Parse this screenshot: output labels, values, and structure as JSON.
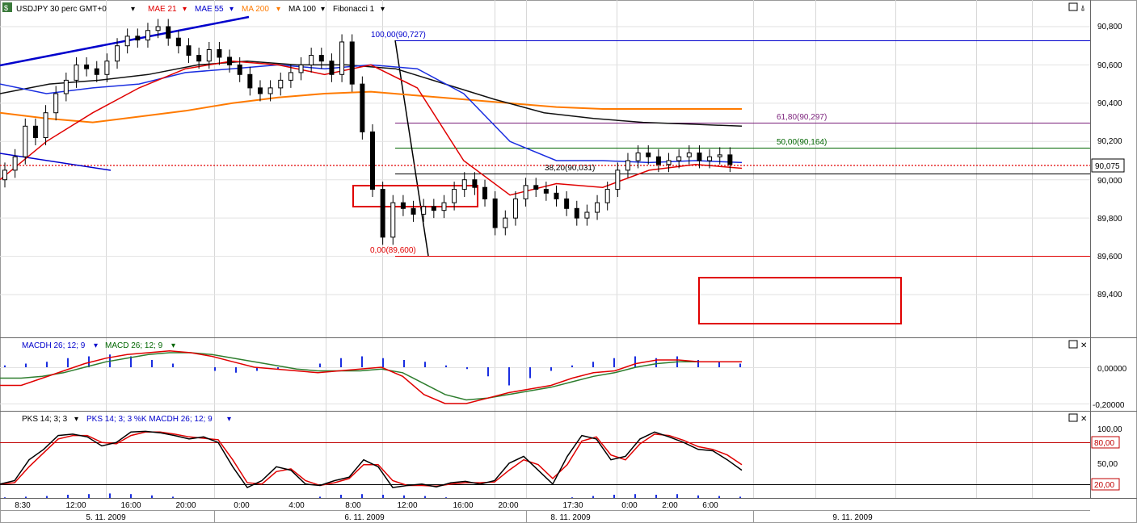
{
  "toolbar": {
    "symbol": "USDJPY 30 perc GMT+0",
    "indicators": [
      {
        "label": "MAE 21",
        "color": "#e00000"
      },
      {
        "label": "MAE 55",
        "color": "#0000cc"
      },
      {
        "label": "MA 200",
        "color": "#ff7a00"
      },
      {
        "label": "MA 100",
        "color": "#000000"
      },
      {
        "label": "Fibonacci 1",
        "color": "#000000"
      }
    ]
  },
  "price_axis": {
    "ticks": [
      "90,800",
      "90,600",
      "90,400",
      "90,200",
      "90,000",
      "89,800",
      "89,600",
      "89,400"
    ],
    "current": "90,075"
  },
  "fibonacci": [
    {
      "label": "100,00(90,727)",
      "color": "#0000cc"
    },
    {
      "label": "61,80(90,297)",
      "color": "#7a1f7a"
    },
    {
      "label": "50,00(90,164)",
      "color": "#006600"
    },
    {
      "label": "38,20(90,031)",
      "color": "#000000"
    },
    {
      "label": "0,00(89,600)",
      "color": "#e00000"
    }
  ],
  "macd_panel": {
    "labels": [
      {
        "label": "MACDH 26; 12; 9",
        "color": "#0000cc"
      },
      {
        "label": "MACD 26; 12; 9",
        "color": "#006600"
      }
    ],
    "ticks": [
      "0,00000",
      "-0,20000"
    ]
  },
  "pks_panel": {
    "labels": [
      {
        "label": "PKS 14; 3; 3",
        "color": "#000000"
      },
      {
        "label": "PKS 14; 3; 3 %K MACDH 26; 12; 9",
        "color": "#0000cc"
      }
    ],
    "ticks": [
      "100,00",
      "50,00"
    ],
    "levels": [
      "80,00",
      "20,00"
    ]
  },
  "time_axis": {
    "times": [
      "8:30",
      "12:00",
      "16:00",
      "20:00",
      "0:00",
      "4:00",
      "8:00",
      "12:00",
      "16:00",
      "20:00",
      "17:30",
      "0:00",
      "2:00",
      "6:00"
    ],
    "dates": [
      "5. 11. 2009",
      "6. 11. 2009",
      "8. 11. 2009",
      "9. 11. 2009"
    ]
  },
  "chart_data": {
    "type": "candlestick",
    "symbol": "USDJPY",
    "price_range": [
      89.2,
      90.9
    ],
    "close_series": [
      90.05,
      90.12,
      90.28,
      90.22,
      90.35,
      90.45,
      90.52,
      90.6,
      90.58,
      90.55,
      90.62,
      90.7,
      90.75,
      90.73,
      90.78,
      90.8,
      90.74,
      90.7,
      90.65,
      90.62,
      90.68,
      90.64,
      90.6,
      90.55,
      90.48,
      90.45,
      90.48,
      90.52,
      90.56,
      90.6,
      90.65,
      90.62,
      90.55,
      90.72,
      90.5,
      90.25,
      89.95,
      89.7,
      89.88,
      89.85,
      89.82,
      89.86,
      89.84,
      89.88,
      89.95,
      90.0,
      89.96,
      89.9,
      89.75,
      89.8,
      89.9,
      89.97,
      89.95,
      89.93,
      89.9,
      89.85,
      89.8,
      89.83,
      89.88,
      89.95,
      90.05,
      90.1,
      90.14,
      90.12,
      90.08,
      90.1,
      90.12,
      90.14,
      90.1,
      90.12,
      90.13,
      90.08
    ],
    "levels": {
      "fib_100": 90.727,
      "fib_61_8": 90.297,
      "fib_50": 90.164,
      "fib_38_2": 90.031,
      "fib_0": 89.6,
      "current": 90.075
    },
    "moving_averages": {
      "MAE 21": [
        90.0,
        90.2,
        90.35,
        90.48,
        90.58,
        90.62,
        90.6,
        90.55,
        90.6,
        90.48,
        90.1,
        89.92,
        89.98,
        89.96,
        90.05,
        90.08,
        90.06
      ],
      "MAE 55": [
        90.5,
        90.45,
        90.48,
        90.5,
        90.56,
        90.58,
        90.6,
        90.58,
        90.6,
        90.58,
        90.45,
        90.2,
        90.1,
        90.1,
        90.09,
        90.1,
        90.09
      ],
      "MA 200": [
        90.35,
        90.32,
        90.3,
        90.33,
        90.36,
        90.4,
        90.43,
        90.45,
        90.46,
        90.44,
        90.42,
        90.4,
        90.38,
        90.37,
        90.37,
        90.37,
        90.37
      ],
      "MA 100": [
        90.45,
        90.5,
        90.52,
        90.55,
        90.6,
        90.62,
        90.6,
        90.6,
        90.58,
        90.5,
        90.42,
        90.35,
        90.32,
        90.3,
        90.29,
        90.28
      ]
    },
    "macd": {
      "hist": [
        0.01,
        0.02,
        0.03,
        0.05,
        0.06,
        0.07,
        0.06,
        0.04,
        0.02,
        0,
        -0.02,
        -0.03,
        -0.02,
        -0.01,
        0,
        0.02,
        0.05,
        0.06,
        0.05,
        0.04,
        0.03,
        0.01,
        -0.01,
        -0.05,
        -0.1,
        -0.06,
        -0.02,
        0.01,
        0.03,
        0.05,
        0.06,
        0.05,
        0.06,
        0.04,
        0.03,
        0.02
      ],
      "macd": [
        -0.1,
        -0.1,
        -0.06,
        -0.02,
        0.02,
        0.05,
        0.07,
        0.08,
        0.09,
        0.08,
        0.06,
        0.03,
        0,
        -0.01,
        -0.02,
        -0.03,
        -0.02,
        -0.01,
        0,
        -0.05,
        -0.15,
        -0.2,
        -0.2,
        -0.17,
        -0.14,
        -0.12,
        -0.1,
        -0.06,
        -0.03,
        -0.02,
        0.02,
        0.04,
        0.04,
        0.03,
        0.03,
        0.03
      ],
      "signal": [
        -0.06,
        -0.06,
        -0.05,
        -0.03,
        0,
        0.03,
        0.05,
        0.07,
        0.08,
        0.08,
        0.07,
        0.05,
        0.03,
        0.01,
        -0.01,
        -0.02,
        -0.02,
        -0.02,
        -0.01,
        -0.03,
        -0.09,
        -0.15,
        -0.18,
        -0.17,
        -0.15,
        -0.13,
        -0.11,
        -0.08,
        -0.05,
        -0.03,
        0,
        0.02,
        0.03,
        0.03,
        0.03,
        0.03
      ],
      "ylim": [
        -0.24,
        0.12
      ]
    },
    "stochastic": {
      "k": [
        20,
        25,
        55,
        70,
        90,
        92,
        88,
        75,
        80,
        95,
        96,
        94,
        90,
        85,
        88,
        80,
        45,
        15,
        25,
        45,
        40,
        20,
        18,
        25,
        30,
        55,
        45,
        15,
        18,
        20,
        16,
        22,
        24,
        20,
        25,
        50,
        60,
        40,
        20,
        60,
        90,
        85,
        55,
        60,
        85,
        95,
        88,
        80,
        70,
        68,
        55,
        40
      ],
      "d": [
        20,
        22,
        45,
        65,
        85,
        90,
        90,
        80,
        78,
        90,
        95,
        95,
        92,
        88,
        86,
        84,
        55,
        22,
        20,
        38,
        42,
        25,
        18,
        22,
        28,
        48,
        48,
        25,
        18,
        18,
        17,
        20,
        22,
        22,
        23,
        40,
        55,
        48,
        28,
        48,
        82,
        88,
        62,
        55,
        78,
        92,
        90,
        83,
        74,
        70,
        62,
        48
      ],
      "levels": [
        80,
        20
      ],
      "ylim": [
        0,
        110
      ]
    }
  }
}
